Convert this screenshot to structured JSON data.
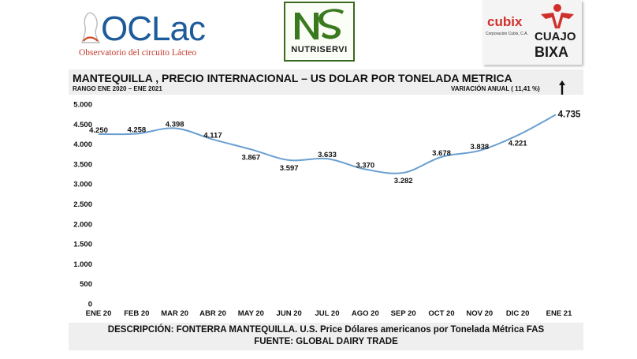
{
  "logos": {
    "oclac": {
      "word": "OCLac",
      "subtitle": "Observatorio del circuito Lácteo"
    },
    "nutriservi": {
      "word": "NUTRISERVI"
    },
    "cubix": {
      "word": "cubix",
      "subtitle": "Corporación Cubix, C.A.",
      "cuajo_top": "CUAJO",
      "cuajo_bottom": "BIXA"
    }
  },
  "header": {
    "title": "MANTEQUILLA , PRECIO INTERNACIONAL – US DOLAR POR TONELADA METRICA",
    "range": "RANGO ENE 2020 – ENE 2021",
    "variation": "VARIACIÓN ANUAL  ( 11,41 %)"
  },
  "chart_data": {
    "type": "line",
    "categories": [
      "ENE 20",
      "FEB 20",
      "MAR 20",
      "ABR 20",
      "MAY 20",
      "JUN 20",
      "JUL 20",
      "AGO 20",
      "SEP 20",
      "OCT 20",
      "NOV 20",
      "DIC 20",
      "ENE 21"
    ],
    "series": [
      {
        "values": [
          4250,
          4258,
          4398,
          4117,
          3867,
          3597,
          3633,
          3370,
          3282,
          3678,
          3838,
          4221,
          4735
        ],
        "labels": [
          "4.250",
          "4.258",
          "4.398",
          "4.117",
          "3.867",
          "3.597",
          "3.633",
          "3.370",
          "3.282",
          "3.678",
          "3.838",
          "4.221",
          "4.735"
        ],
        "color": "#6a9fd0"
      }
    ],
    "ylim": [
      0,
      5000
    ],
    "yticks": [
      0,
      500,
      1000,
      1500,
      2000,
      2500,
      3000,
      3500,
      4000,
      4500,
      5000
    ],
    "ytick_labels": [
      "0",
      "500",
      "1.000",
      "1.500",
      "2.000",
      "2.500",
      "3.000",
      "3.500",
      "4.000",
      "4.500",
      "5.000"
    ],
    "grid": false,
    "legend": "none"
  },
  "footer": {
    "description": "DESCRIPCIÓN: FONTERRA MANTEQUILLA. U.S. Price Dólares americanos por Tonelada Métrica FAS",
    "source": "FUENTE: GLOBAL DAIRY TRADE"
  }
}
